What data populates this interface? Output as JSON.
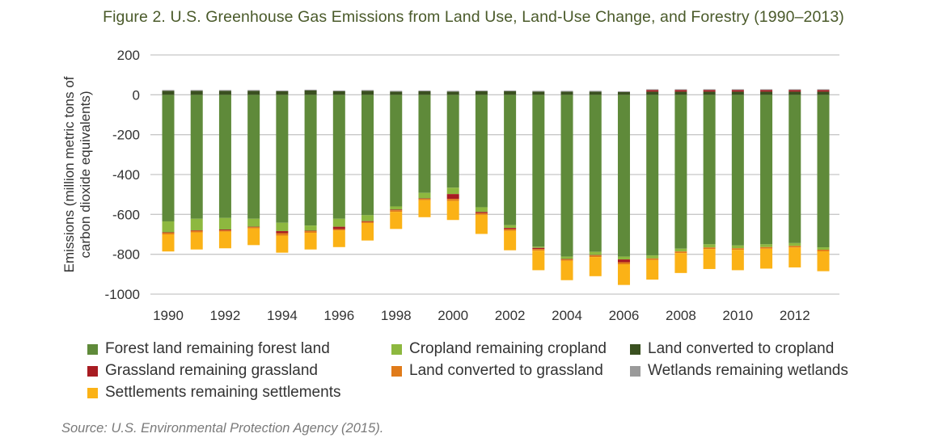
{
  "chart_data": {
    "type": "bar",
    "stacked": true,
    "title": "Figure 2. U.S. Greenhouse Gas Emissions from Land Use, Land-Use Change, and Forestry (1990–2013)",
    "xlabel": "",
    "ylabel": "Emissions (million metric tons of carbon dioxide equivalents)",
    "ylabel_lines": [
      "Emissions (million metric tons of",
      "carbon dioxide equivalents)"
    ],
    "ylim": [
      -1000,
      200
    ],
    "yticks": [
      200,
      0,
      -200,
      -400,
      -600,
      -800,
      -1000
    ],
    "grid": true,
    "legend_position": "bottom",
    "categories": [
      "1990",
      "1991",
      "1992",
      "1993",
      "1994",
      "1995",
      "1996",
      "1997",
      "1998",
      "1999",
      "2000",
      "2001",
      "2002",
      "2003",
      "2004",
      "2005",
      "2006",
      "2007",
      "2008",
      "2009",
      "2010",
      "2011",
      "2012",
      "2013"
    ],
    "xtick_labels": [
      "1990",
      "",
      "1992",
      "",
      "1994",
      "",
      "1996",
      "",
      "1998",
      "",
      "2000",
      "",
      "2002",
      "",
      "2004",
      "",
      "2006",
      "",
      "2008",
      "",
      "2010",
      "",
      "2012",
      ""
    ],
    "series": [
      {
        "name": "Forest land remaining forest land",
        "color": "#5f8a3a",
        "values": [
          -635,
          -622,
          -618,
          -622,
          -642,
          -656,
          -622,
          -604,
          -560,
          -492,
          -466,
          -564,
          -654,
          -762,
          -812,
          -788,
          -812,
          -806,
          -772,
          -750,
          -756,
          -750,
          -744,
          -765
        ]
      },
      {
        "name": "Cropland remaining cropland",
        "color": "#8db83f",
        "values": [
          -55,
          -58,
          -58,
          -40,
          -42,
          -26,
          -40,
          -30,
          -16,
          -28,
          -32,
          -24,
          -14,
          -6,
          -12,
          -16,
          -14,
          -15,
          -14,
          -16,
          -14,
          -14,
          -14,
          -12
        ]
      },
      {
        "name": "Land converted to cropland",
        "color": "#3a5020",
        "values": [
          20,
          20,
          20,
          20,
          18,
          22,
          18,
          20,
          16,
          18,
          16,
          18,
          18,
          16,
          16,
          16,
          14,
          16,
          16,
          16,
          16,
          16,
          16,
          16
        ]
      },
      {
        "name": "Grassland remaining grassland",
        "color": "#a81c22",
        "values": [
          -2,
          -2,
          -4,
          -2,
          -10,
          -2,
          -12,
          -3,
          -3,
          -2,
          -24,
          -6,
          -6,
          -6,
          -2,
          -2,
          -14,
          8,
          8,
          8,
          8,
          8,
          8,
          8
        ]
      },
      {
        "name": "Land converted to grassland",
        "color": "#e07b1a",
        "values": [
          -8,
          -8,
          -6,
          -6,
          -12,
          -8,
          -6,
          -6,
          -8,
          -6,
          -10,
          -8,
          -8,
          -8,
          -6,
          -8,
          -10,
          -8,
          -8,
          -8,
          -8,
          -8,
          -8,
          -8
        ]
      },
      {
        "name": "Wetlands remaining wetlands",
        "color": "#9a9a9a",
        "values": [
          4,
          4,
          4,
          4,
          4,
          4,
          4,
          4,
          4,
          4,
          4,
          4,
          4,
          4,
          4,
          4,
          4,
          4,
          4,
          4,
          4,
          4,
          4,
          4
        ]
      },
      {
        "name": "Settlements remaining settlements",
        "color": "#fbb216",
        "values": [
          -86,
          -86,
          -84,
          -84,
          -86,
          -84,
          -84,
          -88,
          -86,
          -86,
          -96,
          -96,
          -98,
          -98,
          -98,
          -96,
          -104,
          -98,
          -100,
          -100,
          -102,
          -100,
          -100,
          -100
        ]
      }
    ]
  },
  "legend": {
    "items": [
      {
        "label": "Forest land remaining forest land",
        "color": "#5f8a3a"
      },
      {
        "label": "Cropland remaining cropland",
        "color": "#8db83f"
      },
      {
        "label": "Land converted to cropland",
        "color": "#3a5020"
      },
      {
        "label": "Grassland remaining grassland",
        "color": "#a81c22"
      },
      {
        "label": "Land converted to grassland",
        "color": "#e07b1a"
      },
      {
        "label": "Wetlands remaining wetlands",
        "color": "#9a9a9a"
      },
      {
        "label": "Settlements remaining settlements",
        "color": "#fbb216"
      }
    ]
  },
  "source": "Source: U.S. Environmental Protection Agency (2015)."
}
